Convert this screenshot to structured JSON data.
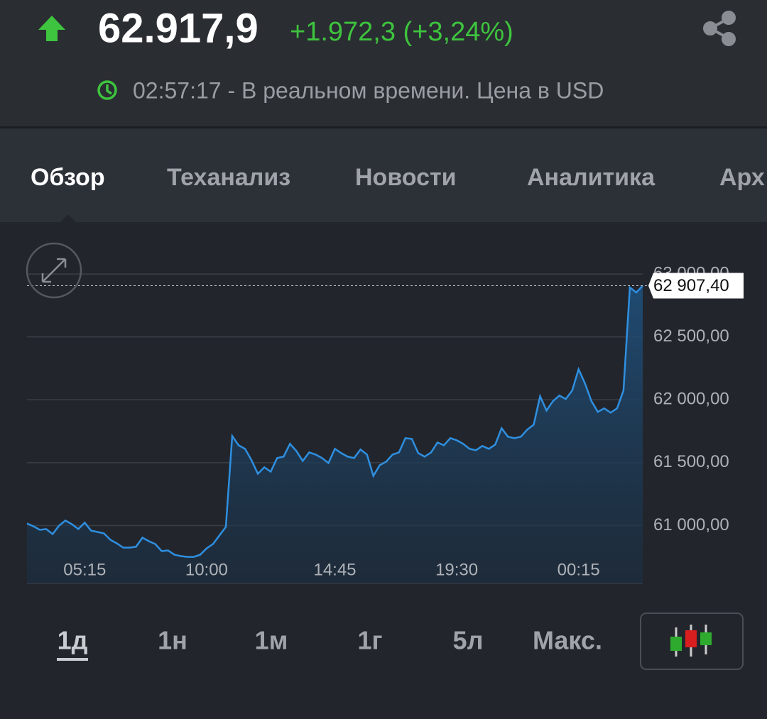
{
  "header": {
    "price": "62.917,9",
    "change": "+1.972,3 (+3,24%)",
    "time_note": "02:57:17 - В реальном времени. Цена в USD"
  },
  "tabs": [
    "Обзор",
    "Теханализ",
    "Новости",
    "Аналитика",
    "Арх"
  ],
  "periods": [
    "1д",
    "1н",
    "1м",
    "1г",
    "5л",
    "Макс."
  ],
  "chart_data": {
    "type": "line",
    "color": "#2f8fe0",
    "categories": [
      null,
      null,
      null,
      null,
      null,
      null,
      null,
      null,
      null,
      "05:15",
      null,
      null,
      null,
      null,
      null,
      null,
      null,
      null,
      null,
      null,
      null,
      null,
      null,
      null,
      null,
      null,
      null,
      null,
      "10:00",
      null,
      null,
      null,
      null,
      null,
      null,
      null,
      null,
      null,
      null,
      null,
      null,
      null,
      null,
      null,
      null,
      null,
      null,
      null,
      "14:45",
      null,
      null,
      null,
      null,
      null,
      null,
      null,
      null,
      null,
      null,
      null,
      null,
      null,
      null,
      null,
      null,
      null,
      null,
      "19:30",
      null,
      null,
      null,
      null,
      null,
      null,
      null,
      null,
      null,
      null,
      null,
      null,
      null,
      null,
      null,
      null,
      null,
      null,
      "00:15",
      null,
      null,
      null,
      null,
      null,
      null,
      null,
      null,
      null,
      null
    ],
    "values": [
      61017,
      60994,
      60966,
      60972,
      60932,
      61000,
      61040,
      61011,
      60972,
      61023,
      60960,
      60949,
      60938,
      60887,
      60859,
      60825,
      60825,
      60831,
      60904,
      60876,
      60853,
      60797,
      60802,
      60768,
      60757,
      60751,
      60751,
      60768,
      60819,
      60853,
      60921,
      60989,
      61712,
      61638,
      61610,
      61520,
      61412,
      61463,
      61429,
      61537,
      61548,
      61650,
      61593,
      61514,
      61582,
      61565,
      61537,
      61497,
      61610,
      61576,
      61548,
      61537,
      61605,
      61565,
      61395,
      61480,
      61508,
      61565,
      61582,
      61695,
      61689,
      61576,
      61548,
      61582,
      61661,
      61638,
      61695,
      61678,
      61650,
      61610,
      61599,
      61633,
      61610,
      61644,
      61774,
      61706,
      61695,
      61706,
      61763,
      61802,
      62028,
      61915,
      61989,
      62034,
      62006,
      62074,
      62243,
      62130,
      61989,
      61904,
      61932,
      61898,
      61932,
      62074,
      62893,
      62853,
      62907.4
    ],
    "ylim": [
      60540,
      63260
    ],
    "yticks": [
      {
        "value": 61000,
        "label": "61 000,00"
      },
      {
        "value": 61500,
        "label": "61 500,00"
      },
      {
        "value": 62000,
        "label": "62 000,00"
      },
      {
        "value": 62500,
        "label": "62 500,00"
      },
      {
        "value": 63000,
        "label": "63 000,00"
      }
    ],
    "grid": true,
    "last_price": {
      "value": 62907.4,
      "label": "62 907,40"
    }
  }
}
